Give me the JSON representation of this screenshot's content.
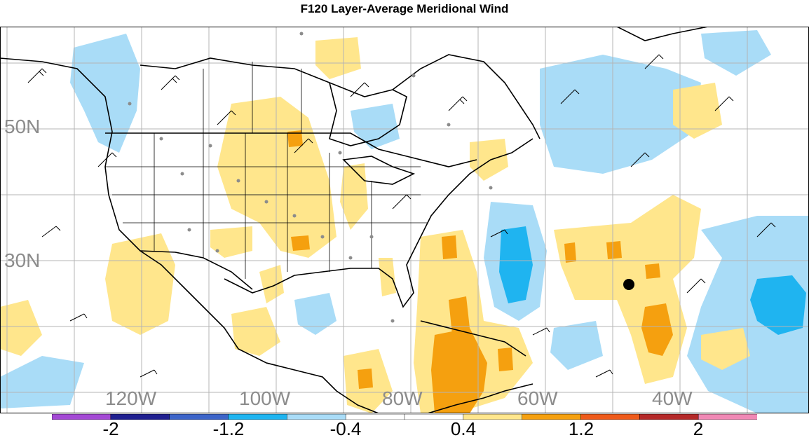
{
  "title": "F120 Layer-Average Meridional Wind",
  "lat_labels": [
    "50N",
    "30N"
  ],
  "lon_labels": [
    "120W",
    "100W",
    "80W",
    "60W",
    "40W"
  ],
  "colorbar": {
    "colors": [
      "#a349d4",
      "#1f1f8f",
      "#3c64c8",
      "#1fb4f0",
      "#a9dcf7",
      "#ffffff",
      "#ffffff",
      "#ffe68c",
      "#f5a00f",
      "#ee5a1a",
      "#b42828",
      "#f088b4"
    ],
    "labels": [
      "-2",
      "-1.2",
      "-0.4",
      "0.4",
      "1.2",
      "2"
    ]
  },
  "legend": {
    "colors": {
      "light_blue": "#a9dcf7",
      "blue": "#1fb4f0",
      "light_yellow": "#ffe68c",
      "orange": "#f5a00f",
      "dark_orange": "#ee5a1a"
    }
  }
}
